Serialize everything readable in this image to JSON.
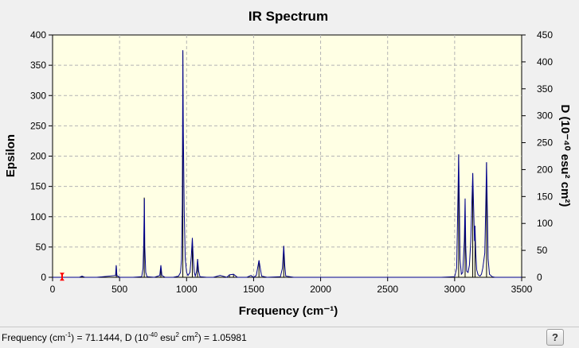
{
  "chart_data": {
    "type": "line",
    "title": "IR Spectrum",
    "xlabel": "Frequency (cm⁻¹)",
    "ylabel_left": "Epsilon",
    "ylabel_right": "D (10⁻⁴⁰ esu² cm²)",
    "xlim": [
      0,
      3500
    ],
    "ylim_left": [
      0,
      400
    ],
    "ylim_right": [
      0,
      450
    ],
    "x_ticks": [
      0,
      500,
      1000,
      1500,
      2000,
      2500,
      3000,
      3500
    ],
    "y_ticks_left": [
      0,
      50,
      100,
      150,
      200,
      250,
      300,
      350,
      400
    ],
    "y_ticks_right": [
      0,
      50,
      100,
      150,
      200,
      250,
      300,
      350,
      400,
      450
    ],
    "grid": true,
    "line_color": "#00008b",
    "stick_color": "#000000",
    "marker_color": "#ff0000",
    "series": [
      {
        "values": [
          [
            0,
            0
          ],
          [
            50,
            0
          ],
          [
            150,
            0
          ],
          [
            200,
            0
          ],
          [
            220,
            2
          ],
          [
            240,
            0
          ],
          [
            330,
            0
          ],
          [
            470,
            3
          ],
          [
            475,
            20
          ],
          [
            480,
            3
          ],
          [
            500,
            0
          ],
          [
            600,
            0
          ],
          [
            665,
            1
          ],
          [
            675,
            15
          ],
          [
            680,
            55
          ],
          [
            685,
            130
          ],
          [
            688,
            50
          ],
          [
            695,
            8
          ],
          [
            705,
            1
          ],
          [
            760,
            0
          ],
          [
            800,
            3
          ],
          [
            808,
            20
          ],
          [
            816,
            3
          ],
          [
            840,
            0
          ],
          [
            900,
            0
          ],
          [
            940,
            2
          ],
          [
            955,
            8
          ],
          [
            962,
            30
          ],
          [
            968,
            120
          ],
          [
            972,
            375
          ],
          [
            976,
            240
          ],
          [
            982,
            110
          ],
          [
            990,
            30
          ],
          [
            1000,
            8
          ],
          [
            1010,
            3
          ],
          [
            1025,
            8
          ],
          [
            1035,
            35
          ],
          [
            1043,
            65
          ],
          [
            1050,
            30
          ],
          [
            1058,
            8
          ],
          [
            1065,
            2
          ],
          [
            1075,
            10
          ],
          [
            1082,
            30
          ],
          [
            1090,
            10
          ],
          [
            1100,
            1
          ],
          [
            1150,
            0
          ],
          [
            1200,
            0
          ],
          [
            1250,
            3
          ],
          [
            1300,
            0
          ],
          [
            1320,
            4
          ],
          [
            1350,
            5
          ],
          [
            1380,
            0
          ],
          [
            1450,
            0
          ],
          [
            1480,
            3
          ],
          [
            1500,
            0
          ],
          [
            1520,
            3
          ],
          [
            1540,
            28
          ],
          [
            1552,
            12
          ],
          [
            1560,
            2
          ],
          [
            1600,
            0
          ],
          [
            1700,
            1
          ],
          [
            1715,
            15
          ],
          [
            1725,
            52
          ],
          [
            1732,
            20
          ],
          [
            1740,
            2
          ],
          [
            1800,
            0
          ],
          [
            2000,
            0
          ],
          [
            2500,
            0
          ],
          [
            2900,
            0
          ],
          [
            3000,
            1
          ],
          [
            3015,
            15
          ],
          [
            3025,
            140
          ],
          [
            3030,
            203
          ],
          [
            3035,
            130
          ],
          [
            3040,
            30
          ],
          [
            3050,
            5
          ],
          [
            3060,
            8
          ],
          [
            3072,
            60
          ],
          [
            3078,
            130
          ],
          [
            3083,
            50
          ],
          [
            3090,
            10
          ],
          [
            3100,
            8
          ],
          [
            3110,
            20
          ],
          [
            3120,
            60
          ],
          [
            3128,
            120
          ],
          [
            3135,
            172
          ],
          [
            3140,
            130
          ],
          [
            3148,
            60
          ],
          [
            3152,
            85
          ],
          [
            3158,
            40
          ],
          [
            3165,
            12
          ],
          [
            3175,
            4
          ],
          [
            3190,
            2
          ],
          [
            3200,
            5
          ],
          [
            3210,
            15
          ],
          [
            3225,
            40
          ],
          [
            3233,
            130
          ],
          [
            3238,
            190
          ],
          [
            3243,
            120
          ],
          [
            3250,
            30
          ],
          [
            3260,
            5
          ],
          [
            3280,
            1
          ],
          [
            3300,
            0
          ],
          [
            3500,
            0
          ]
        ]
      }
    ],
    "sticks": [
      {
        "x": 220,
        "d": 2
      },
      {
        "x": 476,
        "d": 21
      },
      {
        "x": 684,
        "d": 148
      },
      {
        "x": 808,
        "d": 22
      },
      {
        "x": 972,
        "d": 420
      },
      {
        "x": 1043,
        "d": 73
      },
      {
        "x": 1082,
        "d": 34
      },
      {
        "x": 1320,
        "d": 4
      },
      {
        "x": 1350,
        "d": 6
      },
      {
        "x": 1540,
        "d": 31
      },
      {
        "x": 1725,
        "d": 58
      },
      {
        "x": 3030,
        "d": 228
      },
      {
        "x": 3078,
        "d": 146
      },
      {
        "x": 3135,
        "d": 193
      },
      {
        "x": 3152,
        "d": 95
      },
      {
        "x": 3238,
        "d": 213
      }
    ],
    "marker": {
      "x": 71.1444,
      "d": 1.05981
    }
  },
  "status": {
    "freq_label": "Frequency (cm",
    "freq_sup": "-1",
    "freq_value": ") = 71.1444, D (10",
    "d_sup1": "-40",
    "d_mid": " esu",
    "d_sup2": "2",
    "d_mid2": " cm",
    "d_sup3": "2",
    "d_value": ") = 1.05981"
  },
  "help_button": {
    "label": "?"
  }
}
